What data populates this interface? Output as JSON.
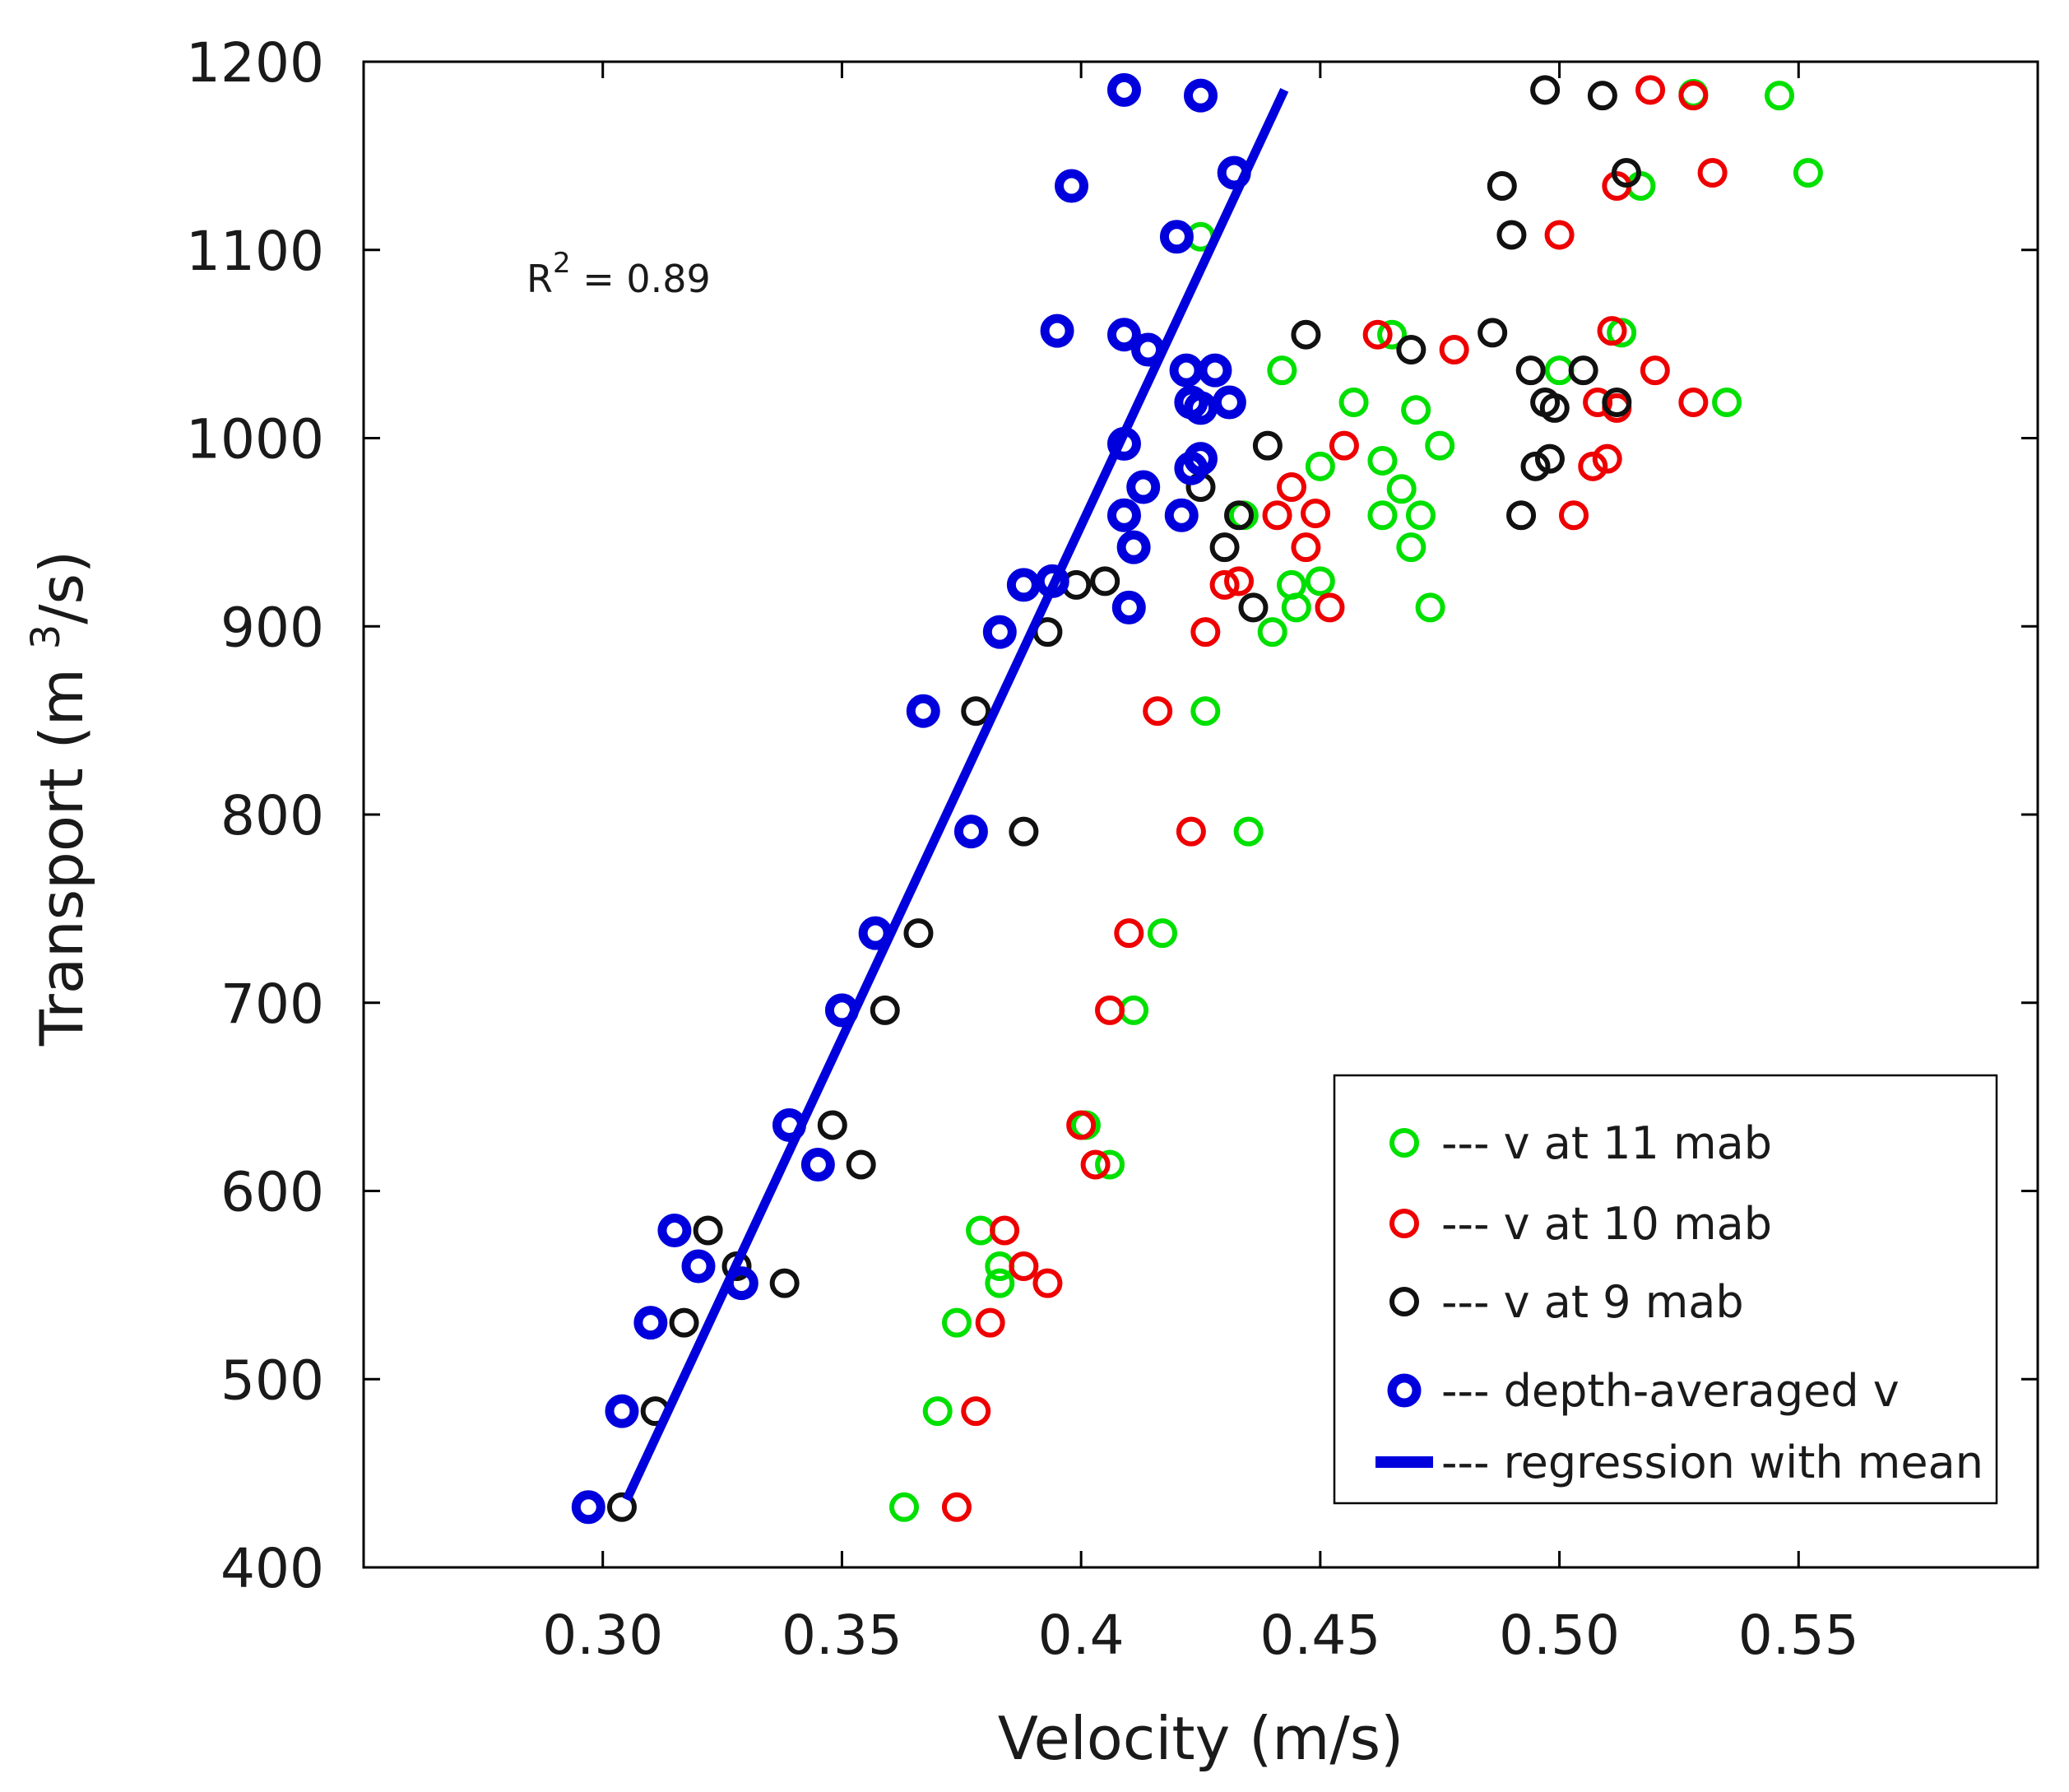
{
  "chart_data": {
    "type": "scatter",
    "xlabel": "Velocity (m/s)",
    "ylabel": "Transport (m",
    "ylabel_sup": "3",
    "ylabel_suffix": "/s)",
    "xlim": [
      0.25,
      0.6
    ],
    "ylim": [
      400,
      1200
    ],
    "x_ticks": [
      0.3,
      0.35,
      0.4,
      0.45,
      0.5,
      0.55
    ],
    "x_tick_labels": [
      "0.30",
      "0.35",
      "0.4",
      "0.45",
      "0.50",
      "0.55"
    ],
    "y_ticks": [
      400,
      500,
      600,
      700,
      800,
      900,
      1000,
      1100,
      1200
    ],
    "y_tick_labels": [
      "400",
      "500",
      "600",
      "700",
      "800",
      "900",
      "1000",
      "1100",
      "1200"
    ],
    "annotation": {
      "prefix": "R",
      "sup": "2",
      "rest": " =  0.89"
    },
    "legend_position": "bottom-right",
    "series": [
      {
        "name": "--- v at 11 mab",
        "marker": "open-circle",
        "color": "#00e000",
        "thick": false,
        "points": [
          [
            0.363,
            432
          ],
          [
            0.37,
            483
          ],
          [
            0.374,
            530
          ],
          [
            0.383,
            551
          ],
          [
            0.383,
            560
          ],
          [
            0.379,
            579
          ],
          [
            0.406,
            614
          ],
          [
            0.401,
            635
          ],
          [
            0.411,
            696
          ],
          [
            0.417,
            737
          ],
          [
            0.435,
            791
          ],
          [
            0.426,
            855
          ],
          [
            0.44,
            897
          ],
          [
            0.445,
            910
          ],
          [
            0.45,
            924
          ],
          [
            0.444,
            922
          ],
          [
            0.434,
            959
          ],
          [
            0.463,
            959
          ],
          [
            0.467,
            973
          ],
          [
            0.463,
            988
          ],
          [
            0.473,
            910
          ],
          [
            0.469,
            942
          ],
          [
            0.471,
            959
          ],
          [
            0.45,
            985
          ],
          [
            0.475,
            996
          ],
          [
            0.47,
            1015
          ],
          [
            0.457,
            1019
          ],
          [
            0.442,
            1036
          ],
          [
            0.465,
            1055
          ],
          [
            0.425,
            1107
          ],
          [
            0.5,
            1036
          ],
          [
            0.513,
            1056
          ],
          [
            0.535,
            1019
          ],
          [
            0.517,
            1134
          ],
          [
            0.552,
            1141
          ],
          [
            0.528,
            1183
          ],
          [
            0.546,
            1182
          ]
        ]
      },
      {
        "name": "--- v at 10 mab",
        "marker": "open-circle",
        "color": "#ee0000",
        "thick": false,
        "points": [
          [
            0.374,
            432
          ],
          [
            0.378,
            483
          ],
          [
            0.381,
            530
          ],
          [
            0.393,
            551
          ],
          [
            0.388,
            560
          ],
          [
            0.384,
            579
          ],
          [
            0.403,
            614
          ],
          [
            0.4,
            635
          ],
          [
            0.406,
            696
          ],
          [
            0.41,
            737
          ],
          [
            0.423,
            791
          ],
          [
            0.416,
            855
          ],
          [
            0.426,
            897
          ],
          [
            0.452,
            910
          ],
          [
            0.433,
            924
          ],
          [
            0.43,
            922
          ],
          [
            0.447,
            942
          ],
          [
            0.441,
            959
          ],
          [
            0.449,
            960
          ],
          [
            0.444,
            974
          ],
          [
            0.455,
            996
          ],
          [
            0.462,
            1055
          ],
          [
            0.478,
            1047
          ],
          [
            0.5,
            1108
          ],
          [
            0.503,
            959
          ],
          [
            0.507,
            985
          ],
          [
            0.51,
            989
          ],
          [
            0.508,
            1019
          ],
          [
            0.512,
            1016
          ],
          [
            0.52,
            1036
          ],
          [
            0.511,
            1057
          ],
          [
            0.528,
            1019
          ],
          [
            0.512,
            1134
          ],
          [
            0.532,
            1141
          ],
          [
            0.519,
            1185
          ],
          [
            0.528,
            1182
          ]
        ]
      },
      {
        "name": "--- v at 9 mab",
        "marker": "open-circle",
        "color": "#111111",
        "thick": false,
        "points": [
          [
            0.304,
            432
          ],
          [
            0.311,
            483
          ],
          [
            0.317,
            530
          ],
          [
            0.338,
            551
          ],
          [
            0.328,
            560
          ],
          [
            0.322,
            579
          ],
          [
            0.354,
            614
          ],
          [
            0.348,
            635
          ],
          [
            0.359,
            696
          ],
          [
            0.366,
            737
          ],
          [
            0.388,
            791
          ],
          [
            0.378,
            855
          ],
          [
            0.393,
            897
          ],
          [
            0.436,
            910
          ],
          [
            0.405,
            924
          ],
          [
            0.399,
            922
          ],
          [
            0.43,
            942
          ],
          [
            0.433,
            959
          ],
          [
            0.425,
            974
          ],
          [
            0.439,
            996
          ],
          [
            0.447,
            1055
          ],
          [
            0.469,
            1047
          ],
          [
            0.486,
            1056
          ],
          [
            0.492,
            959
          ],
          [
            0.495,
            985
          ],
          [
            0.498,
            989
          ],
          [
            0.499,
            1016
          ],
          [
            0.497,
            1019
          ],
          [
            0.494,
            1036
          ],
          [
            0.505,
            1036
          ],
          [
            0.512,
            1019
          ],
          [
            0.49,
            1108
          ],
          [
            0.488,
            1134
          ],
          [
            0.514,
            1141
          ],
          [
            0.497,
            1185
          ],
          [
            0.509,
            1182
          ]
        ]
      },
      {
        "name": "--- depth-averaged v",
        "marker": "open-circle",
        "color": "#0000dd",
        "thick": true,
        "points": [
          [
            0.297,
            432
          ],
          [
            0.304,
            483
          ],
          [
            0.31,
            530
          ],
          [
            0.329,
            551
          ],
          [
            0.32,
            560
          ],
          [
            0.315,
            579
          ],
          [
            0.345,
            614
          ],
          [
            0.339,
            635
          ],
          [
            0.35,
            696
          ],
          [
            0.357,
            737
          ],
          [
            0.377,
            791
          ],
          [
            0.367,
            855
          ],
          [
            0.383,
            897
          ],
          [
            0.41,
            910
          ],
          [
            0.394,
            924
          ],
          [
            0.388,
            922
          ],
          [
            0.411,
            942
          ],
          [
            0.409,
            959
          ],
          [
            0.421,
            959
          ],
          [
            0.413,
            974
          ],
          [
            0.423,
            984
          ],
          [
            0.425,
            989
          ],
          [
            0.409,
            997
          ],
          [
            0.425,
            1016
          ],
          [
            0.423,
            1019
          ],
          [
            0.431,
            1019
          ],
          [
            0.422,
            1036
          ],
          [
            0.428,
            1036
          ],
          [
            0.414,
            1047
          ],
          [
            0.409,
            1055
          ],
          [
            0.395,
            1057
          ],
          [
            0.42,
            1107
          ],
          [
            0.398,
            1134
          ],
          [
            0.432,
            1141
          ],
          [
            0.409,
            1185
          ],
          [
            0.425,
            1182
          ]
        ]
      },
      {
        "name": "--- regression with mean",
        "marker": "line",
        "color": "#0000dd",
        "points": [
          [
            0.305,
            436
          ],
          [
            0.4425,
            1185
          ]
        ]
      }
    ]
  }
}
